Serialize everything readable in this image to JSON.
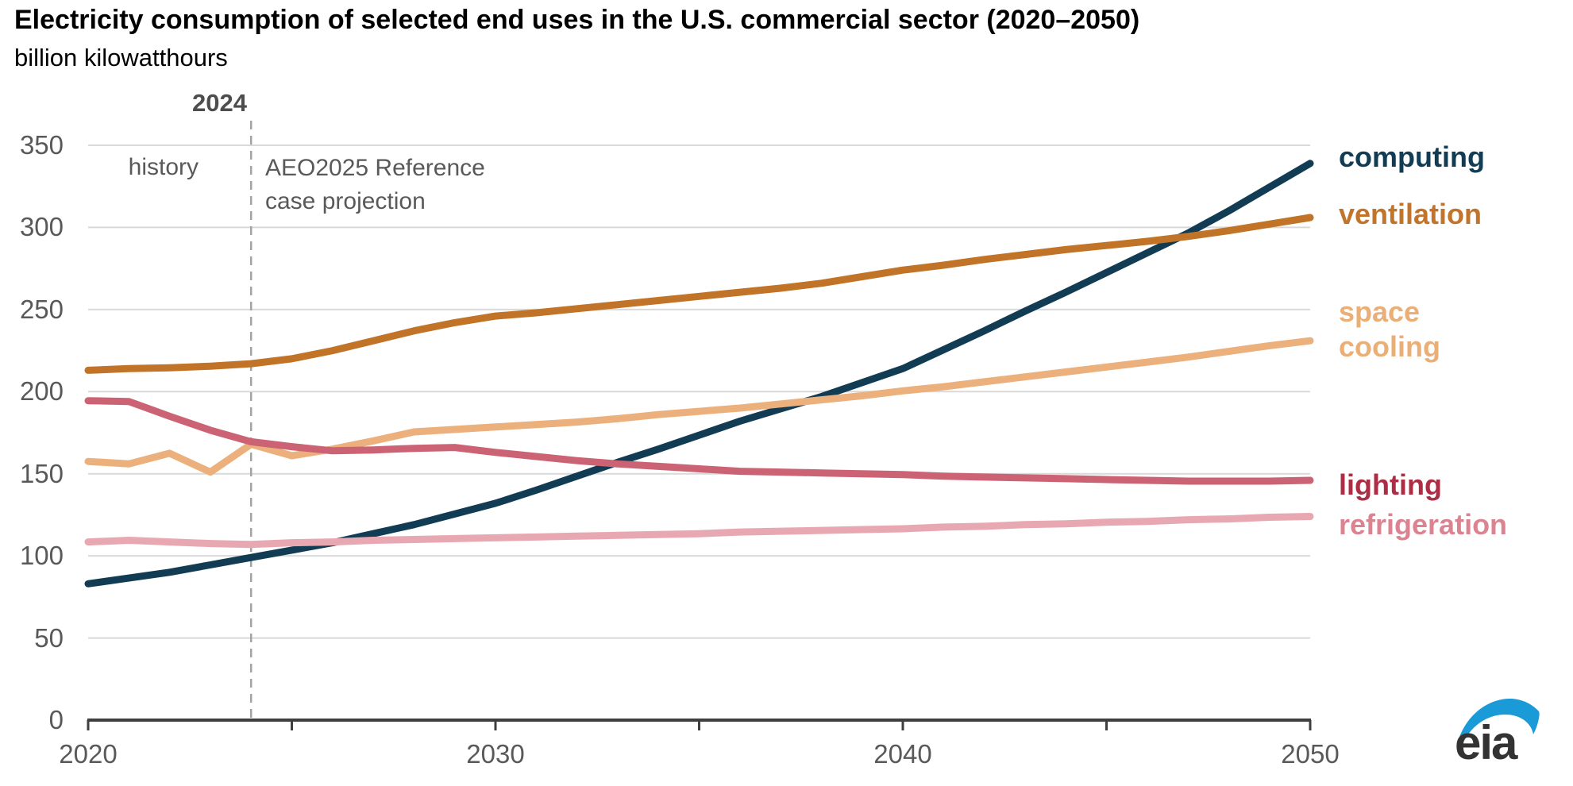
{
  "title": "Electricity consumption of selected end uses in the U.S. commercial sector (2020–2050)",
  "subtitle": "billion kilowatthours",
  "annotations": {
    "divider_year_label": "2024",
    "history_label": "history",
    "projection_label_line1": "AEO2025 Reference",
    "projection_label_line2": "case projection"
  },
  "logo": {
    "text": "eia",
    "swoosh_color": "#1a9ad6",
    "text_color": "#333333"
  },
  "colors": {
    "grid": "#d9d9d9",
    "axis": "#3f3f3f",
    "divider": "#a3a3a3",
    "tick_text": "#595959"
  },
  "chart_data": {
    "type": "line",
    "title": "Electricity consumption of selected end uses in the U.S. commercial sector (2020–2050)",
    "ylabel": "billion kilowatthours",
    "xlim": [
      2020,
      2050
    ],
    "ylim": [
      0,
      350
    ],
    "grid": "horizontal",
    "legend_position": "right-of-line-ends",
    "y_ticks": [
      0,
      50,
      100,
      150,
      200,
      250,
      300,
      350
    ],
    "x_ticks_labeled": [
      2020,
      2030,
      2040,
      2050
    ],
    "x_ticks_minor": [
      2025,
      2035,
      2045
    ],
    "divider_x": 2024,
    "x": [
      2020,
      2021,
      2022,
      2023,
      2024,
      2025,
      2026,
      2027,
      2028,
      2029,
      2030,
      2031,
      2032,
      2033,
      2034,
      2035,
      2036,
      2037,
      2038,
      2039,
      2040,
      2041,
      2042,
      2043,
      2044,
      2045,
      2046,
      2047,
      2048,
      2049,
      2050
    ],
    "series": [
      {
        "name": "computing",
        "label_lines": [
          "computing"
        ],
        "color": "#113c54",
        "label_color": "#113c54",
        "values": [
          83,
          86.5,
          90,
          94.5,
          99,
          103.5,
          108,
          113.5,
          119,
          125.5,
          132,
          140,
          148.5,
          157,
          165,
          173.5,
          182,
          189.5,
          197,
          205.5,
          214,
          225.5,
          237,
          249,
          260.5,
          272.5,
          284.5,
          296.5,
          310,
          324.5,
          339
        ]
      },
      {
        "name": "ventilation",
        "label_lines": [
          "ventilation"
        ],
        "color": "#c17327",
        "label_color": "#c1742b",
        "values": [
          213,
          214,
          214.5,
          215.5,
          217,
          220,
          225,
          231,
          237,
          242,
          246,
          248,
          250.5,
          253,
          255.5,
          258,
          260.5,
          263,
          266,
          270,
          274,
          277,
          280.5,
          283.5,
          286.5,
          289,
          291.5,
          294.5,
          298,
          302,
          306
        ]
      },
      {
        "name": "space cooling",
        "label_lines": [
          "space",
          "cooling"
        ],
        "color": "#ecb07c",
        "label_color": "#eaae77",
        "values": [
          157.5,
          156,
          162.5,
          151,
          168,
          161,
          165,
          170,
          175.5,
          177,
          178.5,
          180,
          181.5,
          183.5,
          186,
          188,
          190,
          192.5,
          195,
          197.5,
          200.5,
          203,
          206,
          209,
          212,
          215,
          218,
          221,
          224.5,
          228,
          231
        ]
      },
      {
        "name": "lighting",
        "label_lines": [
          "lighting"
        ],
        "color": "#cc6374",
        "label_color": "#ad2d45",
        "values": [
          194.5,
          194,
          185,
          176.5,
          169.5,
          166.5,
          164,
          164.5,
          165.5,
          166,
          163,
          160.5,
          158,
          156,
          154.5,
          153,
          151.5,
          151,
          150.5,
          150,
          149.5,
          148.5,
          148,
          147.5,
          147,
          146.5,
          146,
          145.5,
          145.5,
          145.5,
          146
        ]
      },
      {
        "name": "refrigeration",
        "label_lines": [
          "refrigeration"
        ],
        "color": "#e8a8b2",
        "label_color": "#dc8391",
        "values": [
          108.5,
          109.5,
          108.5,
          107.5,
          107,
          108,
          108.5,
          109.5,
          110,
          110.5,
          111,
          111.5,
          112,
          112.5,
          113,
          113.5,
          114.5,
          115,
          115.5,
          116,
          116.5,
          117.5,
          118,
          119,
          119.5,
          120.5,
          121,
          122,
          122.5,
          123.5,
          124
        ]
      }
    ]
  }
}
